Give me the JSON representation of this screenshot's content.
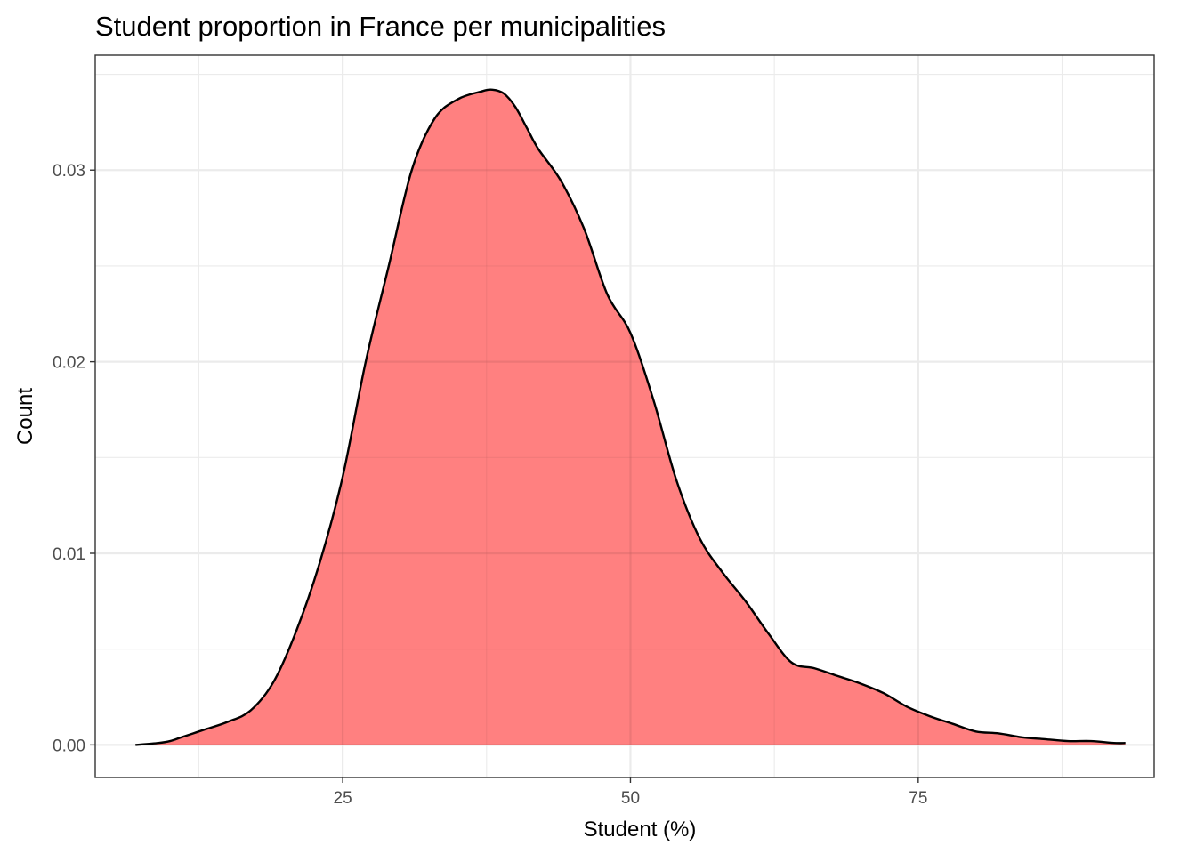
{
  "chart_data": {
    "type": "area",
    "title": "Student proportion in France per municipalities",
    "xlabel": "Student (%)",
    "ylabel": "Count",
    "xlim": [
      3.5,
      95.5
    ],
    "ylim": [
      -0.0017,
      0.036
    ],
    "x_ticks": [
      25,
      50,
      75
    ],
    "x_tick_labels": [
      "25",
      "50",
      "75"
    ],
    "y_ticks": [
      0.0,
      0.01,
      0.02,
      0.03
    ],
    "y_tick_labels": [
      "0.00",
      "0.01",
      "0.02",
      "0.03"
    ],
    "x_minor": [
      12.5,
      37.5,
      62.5,
      87.5
    ],
    "y_minor": [
      0.005,
      0.015,
      0.025,
      0.035
    ],
    "grid": true,
    "legend": "none",
    "fill_color": "#ff8080",
    "line_color": "#000000",
    "series": [
      {
        "x": [
          7,
          9,
          10,
          11,
          12,
          13,
          15,
          17,
          19,
          21,
          23,
          25,
          27,
          29,
          31,
          33,
          35,
          37,
          38,
          39,
          40,
          41,
          42,
          44,
          46,
          48,
          50,
          52,
          54,
          56,
          58,
          60,
          62,
          64,
          66,
          68,
          70,
          72,
          74,
          76,
          78,
          80,
          82,
          84,
          86,
          88,
          90,
          92,
          93
        ],
        "y": [
          0.0,
          0.0001,
          0.0002,
          0.0004,
          0.0006,
          0.0008,
          0.0012,
          0.0018,
          0.0033,
          0.006,
          0.0095,
          0.014,
          0.02,
          0.025,
          0.03,
          0.0327,
          0.0337,
          0.0341,
          0.0342,
          0.034,
          0.0333,
          0.0322,
          0.0311,
          0.0294,
          0.0269,
          0.0235,
          0.0215,
          0.018,
          0.0138,
          0.0108,
          0.009,
          0.0075,
          0.0058,
          0.0043,
          0.004,
          0.0036,
          0.0032,
          0.0027,
          0.002,
          0.0015,
          0.0011,
          0.0007,
          0.0006,
          0.0004,
          0.0003,
          0.0002,
          0.0002,
          0.0001,
          0.0001
        ]
      }
    ]
  }
}
